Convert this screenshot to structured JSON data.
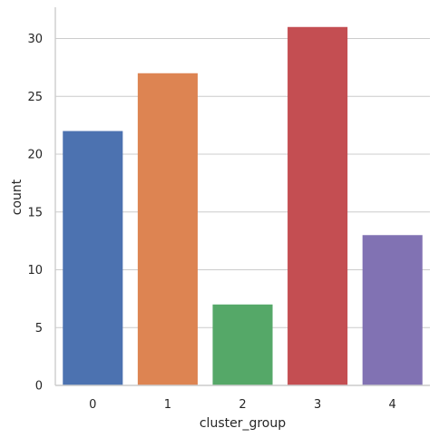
{
  "chart_data": {
    "type": "bar",
    "categories": [
      "0",
      "1",
      "2",
      "3",
      "4"
    ],
    "values": [
      22,
      27,
      7,
      31,
      13
    ],
    "colors": [
      "#4c72b0",
      "#dd8452",
      "#55a868",
      "#c44e52",
      "#8172b3"
    ],
    "xlabel": "cluster_group",
    "ylabel": "count",
    "ylim": [
      0,
      32.55
    ],
    "yticks": [
      0,
      5,
      10,
      15,
      20,
      25,
      30
    ],
    "grid": "y",
    "legend": "none"
  }
}
